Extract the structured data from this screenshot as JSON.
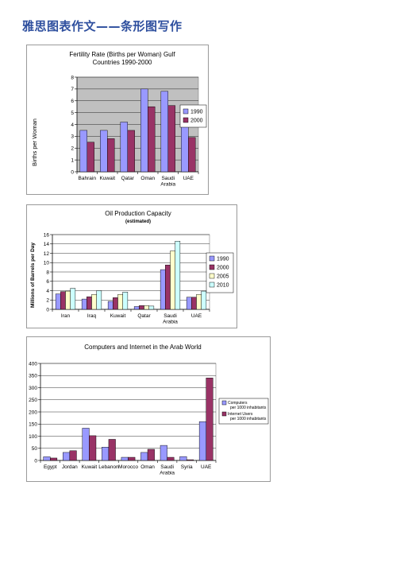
{
  "page_title": "雅思图表作文——条形图写作",
  "colors": {
    "s1990": "#9999ff",
    "s2000": "#993366",
    "s2005": "#ffffcc",
    "s2010": "#ccffff",
    "plot_gray": "#c0c0c0",
    "plot_white": "#ffffff"
  },
  "chart_data": [
    {
      "type": "bar",
      "title": "Fertility Rate (Births per Woman) Gulf",
      "subtitle": "Countries 1990-2000",
      "ylabel": "Births per Woman",
      "xlabel": "",
      "categories": [
        "Bahrain",
        "Kuwait",
        "Qatar",
        "Oman",
        "Saudi Arabia",
        "UAE"
      ],
      "category_lines": [
        [
          "Bahrain"
        ],
        [
          "Kuwait"
        ],
        [
          "Qatar"
        ],
        [
          "Oman"
        ],
        [
          "Saudi",
          "Arabia"
        ],
        [
          "UAE"
        ]
      ],
      "ylim": [
        0,
        8
      ],
      "yticks": [
        0,
        1,
        2,
        3,
        4,
        5,
        6,
        7,
        8
      ],
      "grid": true,
      "legend": "right",
      "series": [
        {
          "name": "1990",
          "values": [
            3.5,
            3.5,
            4.2,
            7.0,
            6.8,
            4.1
          ]
        },
        {
          "name": "2000",
          "values": [
            2.5,
            2.8,
            3.5,
            5.5,
            5.6,
            2.9
          ]
        }
      ]
    },
    {
      "type": "bar",
      "title": "Oil Production Capacity",
      "subtitle": "(estimated)",
      "ylabel": "Millions of Barrels per Day",
      "xlabel": "",
      "categories": [
        "Iran",
        "Iraq",
        "Kuwait",
        "Qatar",
        "Saudi Arabia",
        "UAE"
      ],
      "category_lines": [
        [
          "Iran"
        ],
        [
          "Iraq"
        ],
        [
          "Kuwait"
        ],
        [
          "Qatar"
        ],
        [
          "Saudi",
          "Arabia"
        ],
        [
          "UAE"
        ]
      ],
      "ylim": [
        0,
        16
      ],
      "yticks": [
        0,
        2,
        4,
        6,
        8,
        10,
        12,
        14,
        16
      ],
      "grid": true,
      "legend": "right",
      "series": [
        {
          "name": "1990",
          "values": [
            3.3,
            2.2,
            1.7,
            0.6,
            8.5,
            2.6
          ]
        },
        {
          "name": "2000",
          "values": [
            3.8,
            2.7,
            2.5,
            0.8,
            9.5,
            2.6
          ]
        },
        {
          "name": "2005",
          "values": [
            3.9,
            3.2,
            3.2,
            0.8,
            12.5,
            3.2
          ]
        },
        {
          "name": "2010",
          "values": [
            4.5,
            4.0,
            3.7,
            0.7,
            14.6,
            3.9
          ]
        }
      ]
    },
    {
      "type": "bar",
      "title": "Computers and Internet in the Arab World",
      "xlabel": "",
      "ylabel": "",
      "categories": [
        "Egypt",
        "Jordan",
        "Kuwait",
        "Lebanon",
        "Morocco",
        "Oman",
        "Saudi Arabia",
        "Syria",
        "UAE"
      ],
      "category_lines": [
        [
          "Egypt"
        ],
        [
          "Jordan"
        ],
        [
          "Kuwait"
        ],
        [
          "Lebanon"
        ],
        [
          "Morocco"
        ],
        [
          "Oman"
        ],
        [
          "Saudi",
          "Arabia"
        ],
        [
          "Syria"
        ],
        [
          "UAE"
        ]
      ],
      "ylim": [
        0,
        400
      ],
      "yticks": [
        0,
        50,
        100,
        150,
        200,
        250,
        300,
        350,
        400
      ],
      "grid": true,
      "legend": "right",
      "series": [
        {
          "name": "Computers",
          "name_sub": "per 1000 inhabitants",
          "values": [
            15,
            33,
            133,
            55,
            13,
            33,
            62,
            16,
            160
          ]
        },
        {
          "name": "Internet Users",
          "name_sub": "per 1000 inhabitants",
          "values": [
            10,
            40,
            102,
            87,
            13,
            46,
            13,
            3,
            340
          ]
        }
      ]
    }
  ]
}
